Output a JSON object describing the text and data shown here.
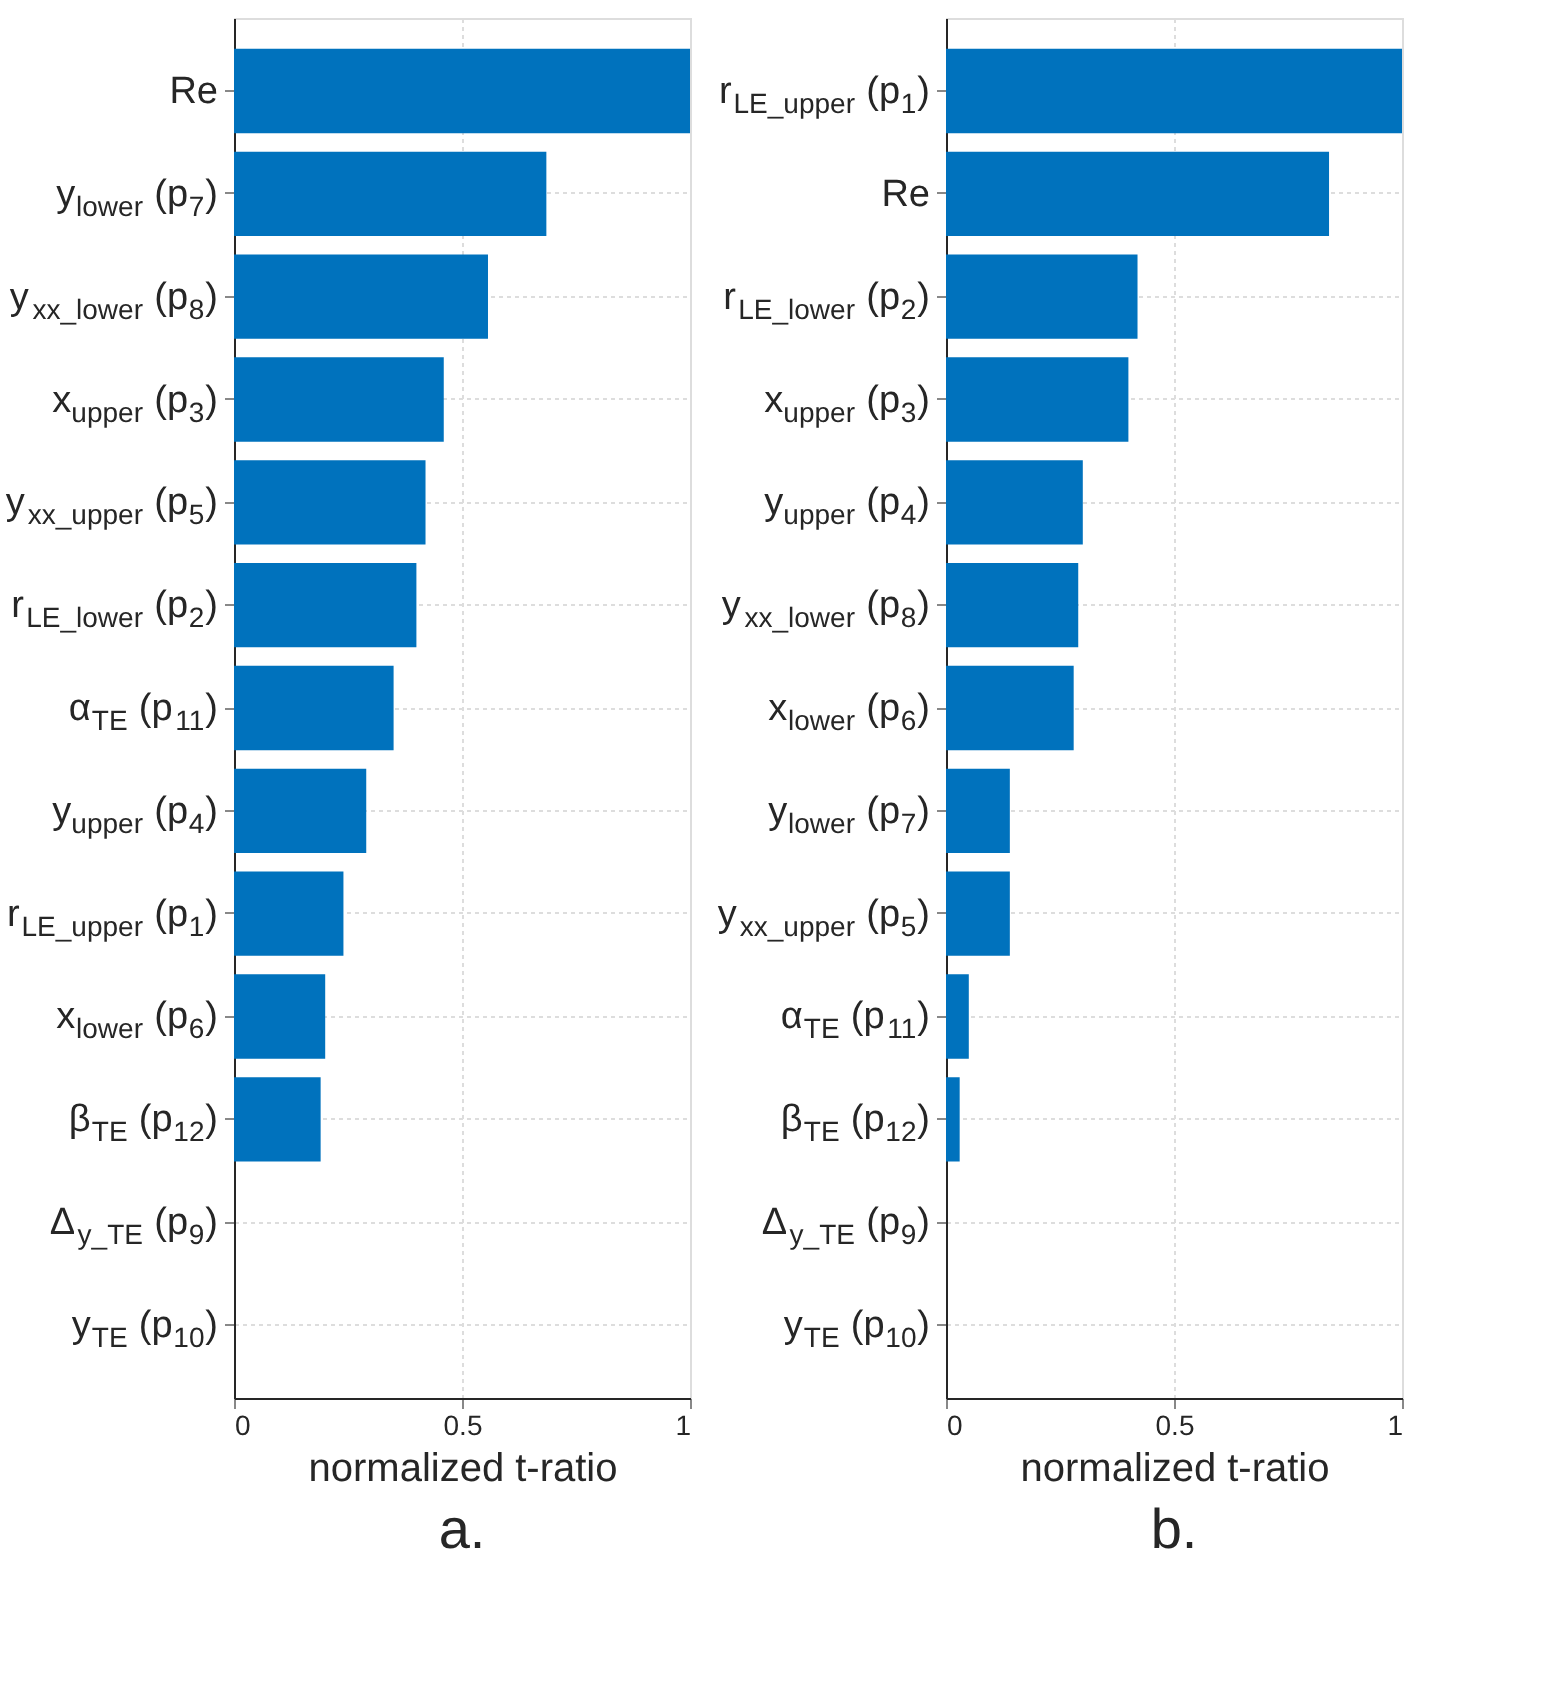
{
  "chart_data": [
    {
      "type": "bar",
      "orientation": "horizontal",
      "xlabel": "normalized t-ratio",
      "annotations": [
        "a."
      ],
      "categories": [
        "Re",
        "y$_{lower}$ (p$_{7}$)",
        "y$_{xx_lower}$ (p$_{8}$)",
        "x$_{upper}$ (p$_{3}$)",
        "y$_{xx_upper}$ (p$_{5}$)",
        "r$_{LE_lower}$ (p$_{2}$)",
        "α$_{TE}$ (p$_{11}$)",
        "y$_{upper}$ (p$_{4}$)",
        "r$_{LE_upper}$ (p$_{1}$)",
        "x$_{lower}$ (p$_{6}$)",
        "β$_{TE}$ (p$_{12}$)",
        "Δ$_{y_TE}$ (p$_{9}$)",
        "y$_{TE}$ (p$_{10}$)"
      ],
      "values": [
        1.0,
        0.685,
        0.557,
        0.46,
        0.42,
        0.4,
        0.35,
        0.29,
        0.24,
        0.2,
        0.19,
        0,
        0
      ],
      "color": "#0072bd",
      "xlim": [
        0,
        1
      ],
      "xticks": [
        0,
        0.5,
        1
      ],
      "grid": true
    },
    {
      "type": "bar",
      "orientation": "horizontal",
      "xlabel": "normalized t-ratio",
      "annotations": [
        "b."
      ],
      "categories": [
        "r$_{LE_upper}$ (p$_{1}$)",
        "Re",
        "r$_{LE_lower}$ (p$_{2}$)",
        "x$_{upper}$ (p$_{3}$)",
        "y$_{upper}$ (p$_{4}$)",
        "y$_{xx_lower}$ (p$_{8}$)",
        "x$_{lower}$ (p$_{6}$)",
        "y$_{lower}$ (p$_{7}$)",
        "y$_{xx_upper}$ (p$_{5}$)",
        "α$_{TE}$ (p$_{11}$)",
        "β$_{TE}$ (p$_{12}$)",
        "Δ$_{y_TE}$ (p$_{9}$)",
        "y$_{TE}$ (p$_{10}$)"
      ],
      "values": [
        1.0,
        0.84,
        0.42,
        0.4,
        0.3,
        0.29,
        0.28,
        0.14,
        0.14,
        0.05,
        0.03,
        0,
        0
      ],
      "color": "#0072bd",
      "xlim": [
        0,
        1
      ],
      "xticks": [
        0,
        0.5,
        1
      ],
      "grid": true
    }
  ]
}
